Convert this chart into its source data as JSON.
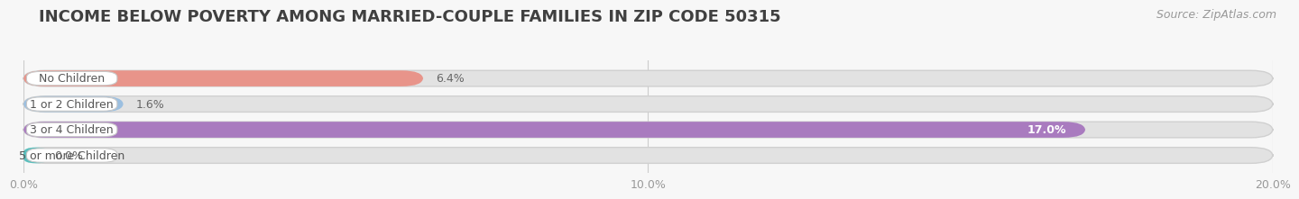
{
  "title": "INCOME BELOW POVERTY AMONG MARRIED-COUPLE FAMILIES IN ZIP CODE 50315",
  "source": "Source: ZipAtlas.com",
  "categories": [
    "No Children",
    "1 or 2 Children",
    "3 or 4 Children",
    "5 or more Children"
  ],
  "values": [
    6.4,
    1.6,
    17.0,
    0.0
  ],
  "bar_colors": [
    "#e8948a",
    "#9bbfe0",
    "#a97bbf",
    "#5bbfbd"
  ],
  "background_color": "#f7f7f7",
  "bar_bg_color": "#e2e2e2",
  "bar_bg_outline": "#d0d0d0",
  "xlim": [
    0,
    20.0
  ],
  "xticks": [
    0.0,
    10.0,
    20.0
  ],
  "xticklabels": [
    "0.0%",
    "10.0%",
    "20.0%"
  ],
  "title_fontsize": 13,
  "source_fontsize": 9,
  "label_fontsize": 9,
  "value_fontsize": 9,
  "bar_height": 0.62,
  "fig_width": 14.06,
  "fig_height": 2.32
}
